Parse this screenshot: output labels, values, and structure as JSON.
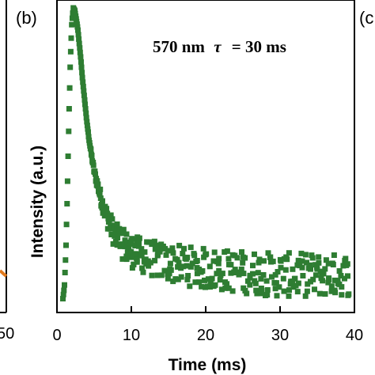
{
  "panels": {
    "left_label": "",
    "left_tick": "50",
    "main_label": "(b)",
    "right_label": "(c"
  },
  "colors": {
    "series": "#2e7d32",
    "left_curve": "#e07a1f",
    "axis": "#000000"
  },
  "chart_data": {
    "type": "scatter",
    "xlabel": "Time (ms)",
    "ylabel": "Intensity (a.u.)",
    "xlim": [
      0,
      40
    ],
    "x_ticks": [
      "0",
      "10",
      "20",
      "30",
      "40"
    ],
    "y_ticks": [],
    "grid": false,
    "legend": "none",
    "annotation": {
      "wavelength": "570 nm",
      "symbol": "τ",
      "rest": "= 30 ms"
    },
    "series": [
      {
        "marker": "square",
        "x": [
          0.8,
          1.0,
          1.2,
          1.4,
          1.6,
          1.8,
          2.0,
          2.2,
          2.4,
          2.6,
          2.8,
          3.0,
          3.2,
          3.4,
          3.6,
          3.8,
          4.0,
          4.3,
          4.6,
          5.0,
          5.5,
          6.0,
          6.5,
          7.0,
          7.5,
          8.0,
          9.0,
          10.0,
          12.0,
          15.0,
          20.0,
          25.0,
          30.0,
          35.0,
          40.0
        ],
        "y": [
          0.02,
          0.06,
          0.18,
          0.38,
          0.62,
          0.82,
          0.95,
          1.0,
          0.99,
          0.96,
          0.93,
          0.88,
          0.83,
          0.77,
          0.72,
          0.67,
          0.62,
          0.56,
          0.51,
          0.45,
          0.4,
          0.35,
          0.31,
          0.28,
          0.25,
          0.23,
          0.2,
          0.18,
          0.16,
          0.14,
          0.12,
          0.11,
          0.1,
          0.1,
          0.1
        ],
        "scatter_band": [
          [
            8,
            0.22,
            0.1
          ],
          [
            12,
            0.17,
            0.12
          ],
          [
            20,
            0.12,
            0.14
          ],
          [
            30,
            0.1,
            0.15
          ],
          [
            40,
            0.1,
            0.14
          ]
        ]
      }
    ]
  }
}
